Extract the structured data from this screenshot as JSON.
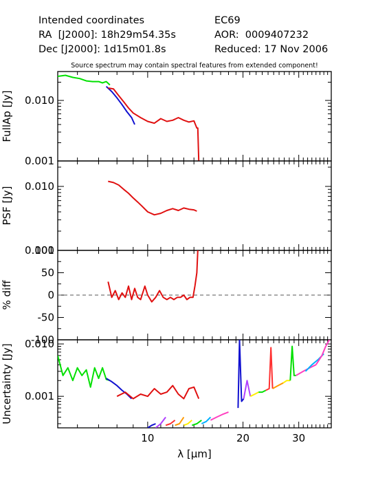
{
  "header": {
    "left_title": "Intended coordinates",
    "ra_label": "RA  [J2000]: 18h29m54.35s",
    "dec_label": "Dec [J2000]: 1d15m01.8s",
    "object": "EC69",
    "aor": "AOR:  0009407232",
    "reduced": "Reduced: 17 Nov 2006"
  },
  "note": "Source spectrum may contain spectral features from extended component!",
  "chart_data": [
    {
      "type": "line",
      "panel": "fullap",
      "ylabel": "FullAp [Jy]",
      "yscale": "log",
      "ylim": [
        0.001,
        0.03
      ],
      "xlim": [
        5.2,
        38
      ],
      "xscale": "log",
      "yticks": [
        0.001,
        0.01
      ],
      "ytick_labels": [
        "0.001",
        "0.010"
      ],
      "series": [
        {
          "color": "#00e000",
          "x": [
            5.2,
            5.5,
            5.8,
            6.1,
            6.4,
            6.7,
            7.0,
            7.2,
            7.4,
            7.6
          ],
          "y": [
            0.025,
            0.026,
            0.024,
            0.023,
            0.021,
            0.0205,
            0.0205,
            0.0195,
            0.0205,
            0.018
          ]
        },
        {
          "color": "#1010d0",
          "x": [
            7.4,
            7.7,
            8.0,
            8.3,
            8.6,
            8.9,
            9.1
          ],
          "y": [
            0.017,
            0.014,
            0.011,
            0.0085,
            0.0065,
            0.0052,
            0.004
          ]
        },
        {
          "color": "#e01010",
          "x": [
            7.5,
            7.8,
            8.1,
            8.4,
            8.7,
            9.0,
            9.5,
            10,
            10.5,
            11,
            11.5,
            12,
            12.5,
            13,
            13.5,
            14,
            14.3,
            14.4,
            14.5
          ],
          "y": [
            0.016,
            0.0155,
            0.012,
            0.0095,
            0.0075,
            0.0062,
            0.0052,
            0.0045,
            0.0042,
            0.005,
            0.0045,
            0.0047,
            0.0052,
            0.0047,
            0.0044,
            0.0046,
            0.0035,
            0.0035,
            0.001
          ]
        }
      ]
    },
    {
      "type": "line",
      "panel": "psf",
      "ylabel": "PSF [Jy]",
      "yscale": "log",
      "ylim": [
        0.001,
        0.025
      ],
      "xlim": [
        5.2,
        38
      ],
      "xscale": "log",
      "yticks": [
        0.001,
        0.01
      ],
      "ytick_labels": [
        "0.001",
        "0.010"
      ],
      "series": [
        {
          "color": "#e01010",
          "x": [
            7.5,
            7.8,
            8.1,
            8.4,
            8.7,
            9.0,
            9.3,
            9.6,
            10,
            10.5,
            11,
            11.5,
            12,
            12.5,
            13,
            13.5,
            14,
            14.3
          ],
          "y": [
            0.012,
            0.0115,
            0.0105,
            0.009,
            0.0078,
            0.0066,
            0.0057,
            0.0049,
            0.004,
            0.0036,
            0.0038,
            0.0042,
            0.0045,
            0.0042,
            0.0046,
            0.0044,
            0.0043,
            0.0041
          ]
        }
      ]
    },
    {
      "type": "line",
      "panel": "diff",
      "ylabel": "% diff",
      "ylim": [
        -100,
        100
      ],
      "xlim": [
        5.2,
        38
      ],
      "xscale": "log",
      "yticks": [
        -100,
        -50,
        0,
        50,
        100
      ],
      "ytick_labels": [
        "-100",
        "-50",
        "0",
        "50",
        "100"
      ],
      "reference_line": 0,
      "series": [
        {
          "color": "#e01010",
          "x": [
            7.5,
            7.7,
            7.9,
            8.1,
            8.3,
            8.5,
            8.7,
            8.9,
            9.1,
            9.3,
            9.5,
            9.8,
            10,
            10.3,
            10.6,
            10.9,
            11.2,
            11.5,
            11.8,
            12.1,
            12.4,
            12.7,
            13,
            13.3,
            13.6,
            13.9,
            14.1,
            14.3,
            14.4
          ],
          "y": [
            30,
            -5,
            10,
            -10,
            5,
            -5,
            20,
            -10,
            15,
            -5,
            -10,
            20,
            0,
            -15,
            -5,
            10,
            -5,
            -10,
            -5,
            -10,
            -5,
            -5,
            0,
            -10,
            -5,
            -5,
            20,
            50,
            100
          ]
        }
      ]
    },
    {
      "type": "line",
      "panel": "uncertainty",
      "ylabel": "Uncertainty [Jy]",
      "xlabel": "λ [μm]",
      "yscale": "log",
      "ylim": [
        0.00025,
        0.012
      ],
      "xlim": [
        5.2,
        38
      ],
      "xscale": "log",
      "yticks": [
        0.001,
        0.01
      ],
      "ytick_labels": [
        "0.001",
        "0.010"
      ],
      "xticks": [
        10,
        20,
        30
      ],
      "xtick_labels": [
        "10",
        "20",
        "30"
      ],
      "series": [
        {
          "color": "#00e000",
          "x": [
            5.2,
            5.4,
            5.6,
            5.8,
            6.0,
            6.2,
            6.4,
            6.6,
            6.8,
            7.0,
            7.2,
            7.4,
            7.6
          ],
          "y": [
            0.006,
            0.0025,
            0.0035,
            0.002,
            0.0035,
            0.0025,
            0.0032,
            0.0015,
            0.0035,
            0.0022,
            0.0035,
            0.0021,
            0.002
          ]
        },
        {
          "color": "#1010d0",
          "x": [
            7.4,
            7.7,
            8.0,
            8.3,
            8.6,
            8.9
          ],
          "y": [
            0.0022,
            0.0019,
            0.0016,
            0.0013,
            0.0011,
            0.0009
          ]
        },
        {
          "color": "#e01010",
          "x": [
            8.0,
            8.5,
            9.0,
            9.5,
            10,
            10.5,
            11,
            11.5,
            12,
            12.5,
            13,
            13.5,
            14,
            14.5
          ],
          "y": [
            0.001,
            0.0012,
            0.0009,
            0.0011,
            0.001,
            0.0014,
            0.0011,
            0.0012,
            0.0016,
            0.0011,
            0.0009,
            0.0014,
            0.0015,
            0.0009
          ]
        },
        {
          "color": "#1010d0",
          "x": [
            10.0,
            10.3,
            10.6
          ],
          "y": [
            0.00025,
            0.00028,
            0.0003
          ]
        },
        {
          "color": "#b040ff",
          "x": [
            10.6,
            11.0,
            11.4
          ],
          "y": [
            0.00025,
            0.0003,
            0.0004
          ]
        },
        {
          "color": "#ff3030",
          "x": [
            11.4,
            11.8,
            12.2
          ],
          "y": [
            0.00028,
            0.0003,
            0.00035
          ]
        },
        {
          "color": "#ff9900",
          "x": [
            12.2,
            12.6,
            13.0
          ],
          "y": [
            0.00028,
            0.0003,
            0.0004
          ]
        },
        {
          "color": "#ffee00",
          "x": [
            13.0,
            13.4,
            13.8
          ],
          "y": [
            0.00028,
            0.0003,
            0.00035
          ]
        },
        {
          "color": "#00e000",
          "x": [
            13.8,
            14.3,
            14.8
          ],
          "y": [
            0.00028,
            0.0003,
            0.00035
          ]
        },
        {
          "color": "#00b0ff",
          "x": [
            14.8,
            15.3,
            15.8
          ],
          "y": [
            0.0003,
            0.00033,
            0.0004
          ]
        },
        {
          "color": "#ff40c0",
          "x": [
            15.8,
            16.5,
            17.2,
            18.0
          ],
          "y": [
            0.00035,
            0.0004,
            0.00045,
            0.0005
          ]
        },
        {
          "color": "#1010d0",
          "x": [
            19.3,
            19.5,
            19.8,
            20.1
          ],
          "y": [
            0.0006,
            0.012,
            0.0008,
            0.0009
          ]
        },
        {
          "color": "#b040ff",
          "x": [
            20.1,
            20.6,
            21.1
          ],
          "y": [
            0.0009,
            0.002,
            0.001
          ]
        },
        {
          "color": "#ffee00",
          "x": [
            21.1,
            21.8,
            22.4
          ],
          "y": [
            0.001,
            0.0011,
            0.0012
          ]
        },
        {
          "color": "#00e000",
          "x": [
            22.4,
            23.0,
            23.6
          ],
          "y": [
            0.0012,
            0.0012,
            0.0013
          ]
        },
        {
          "color": "#ff3030",
          "x": [
            23.6,
            24.2,
            24.5,
            24.8
          ],
          "y": [
            0.0013,
            0.0014,
            0.0085,
            0.0014
          ]
        },
        {
          "color": "#ff9900",
          "x": [
            24.8,
            25.8,
            26.8
          ],
          "y": [
            0.0014,
            0.0016,
            0.0018
          ]
        },
        {
          "color": "#ffee00",
          "x": [
            26.8,
            27.5,
            28.2
          ],
          "y": [
            0.0018,
            0.002,
            0.002
          ]
        },
        {
          "color": "#00e000",
          "x": [
            28.2,
            28.6,
            29.0,
            29.4
          ],
          "y": [
            0.002,
            0.009,
            0.0025,
            0.0025
          ]
        },
        {
          "color": "#ff40c0",
          "x": [
            29.4,
            31,
            32.5,
            34
          ],
          "y": [
            0.0025,
            0.003,
            0.0035,
            0.004
          ]
        },
        {
          "color": "#00b0ff",
          "x": [
            31.5,
            33,
            34.5,
            36
          ],
          "y": [
            0.003,
            0.004,
            0.005,
            0.0065
          ]
        },
        {
          "color": "#ff40c0",
          "x": [
            34,
            35.5,
            36.5,
            37.5
          ],
          "y": [
            0.004,
            0.006,
            0.009,
            0.012
          ]
        }
      ]
    }
  ]
}
